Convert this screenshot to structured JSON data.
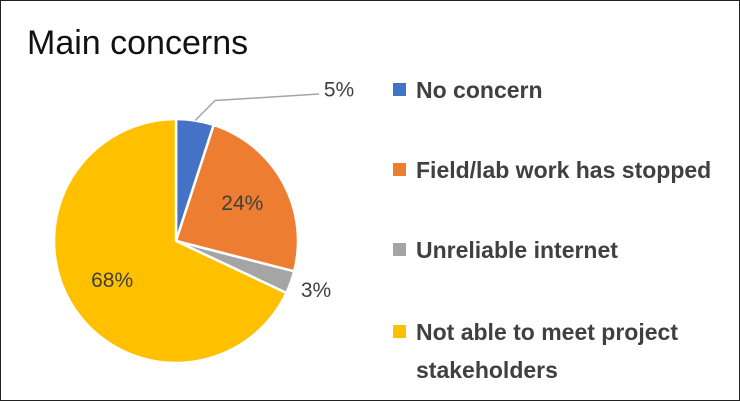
{
  "chart_data": {
    "type": "pie",
    "title": "Main concerns",
    "categories": [
      "No concern",
      "Field/lab work has stopped",
      "Unreliable internet",
      "Not able to meet project stakeholders"
    ],
    "values": [
      5,
      24,
      3,
      68
    ],
    "value_labels": [
      "5%",
      "24%",
      "3%",
      "68%"
    ],
    "colors": [
      "#4472c4",
      "#ed7d31",
      "#a5a5a5",
      "#ffc000"
    ],
    "legend": "right"
  }
}
